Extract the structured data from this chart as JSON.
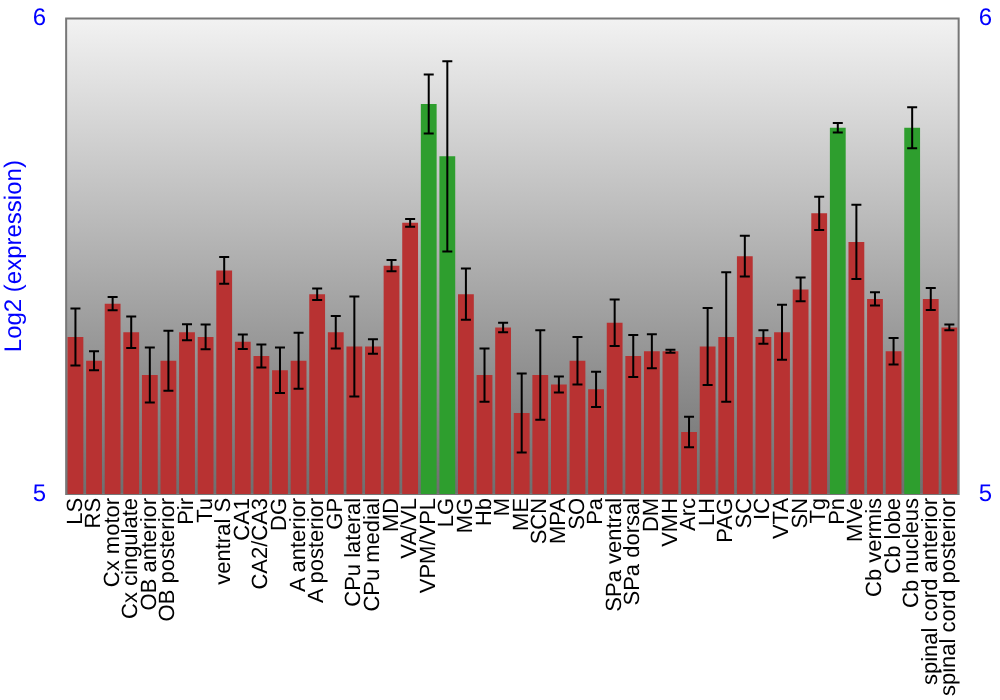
{
  "chart_data": {
    "type": "bar",
    "ylabel": "Log2 (expression)",
    "categories": [
      "LS",
      "RS",
      "Cx motor",
      "Cx cingulate",
      "OB anterior",
      "OB posterior",
      "Pir",
      "Tu",
      "ventral S",
      "CA1",
      "CA2/CA3",
      "DG",
      "A anterior",
      "A posterior",
      "GP",
      "CPu lateral",
      "CPu medial",
      "MD",
      "VA/VL",
      "VPM/VPL",
      "LG",
      "MG",
      "Hb",
      "M",
      "ME",
      "SCN",
      "MPA",
      "SO",
      "Pa",
      "SPa ventral",
      "SPa dorsal",
      "DM",
      "VMH",
      "Arc",
      "LH",
      "PAG",
      "SC",
      "IC",
      "VTA",
      "SN",
      "Tg",
      "Pn",
      "MVe",
      "Cb vermis",
      "Cb lobe",
      "Cb nucleus",
      "spinal cord anterior",
      "spinal cord posterior"
    ],
    "values": [
      5.33,
      5.28,
      5.4,
      5.34,
      5.25,
      5.28,
      5.34,
      5.33,
      5.47,
      5.32,
      5.29,
      5.26,
      5.28,
      5.42,
      5.34,
      5.31,
      5.31,
      5.48,
      5.57,
      5.82,
      5.71,
      5.42,
      5.25,
      5.35,
      5.17,
      5.25,
      5.23,
      5.28,
      5.22,
      5.36,
      5.29,
      5.3,
      5.3,
      5.13,
      5.31,
      5.33,
      5.5,
      5.33,
      5.34,
      5.43,
      5.59,
      5.77,
      5.53,
      5.41,
      5.3,
      5.77,
      5.41,
      5.35
    ],
    "errors": [
      0.06,
      0.02,
      0.014,
      0.033,
      0.058,
      0.063,
      0.017,
      0.026,
      0.028,
      0.015,
      0.024,
      0.048,
      0.059,
      0.012,
      0.034,
      0.105,
      0.015,
      0.012,
      0.008,
      0.062,
      0.2,
      0.054,
      0.056,
      0.01,
      0.083,
      0.094,
      0.017,
      0.05,
      0.037,
      0.049,
      0.044,
      0.036,
      0.003,
      0.032,
      0.081,
      0.136,
      0.043,
      0.014,
      0.058,
      0.025,
      0.035,
      0.01,
      0.078,
      0.014,
      0.028,
      0.043,
      0.023,
      0.006
    ],
    "colors": [
      "#b83232",
      "#b83232",
      "#b83232",
      "#b83232",
      "#b83232",
      "#b83232",
      "#b83232",
      "#b83232",
      "#b83232",
      "#b83232",
      "#b83232",
      "#b83232",
      "#b83232",
      "#b83232",
      "#b83232",
      "#b83232",
      "#b83232",
      "#b83232",
      "#b83232",
      "#2e9e2e",
      "#2e9e2e",
      "#b83232",
      "#b83232",
      "#b83232",
      "#b83232",
      "#b83232",
      "#b83232",
      "#b83232",
      "#b83232",
      "#b83232",
      "#b83232",
      "#b83232",
      "#b83232",
      "#b83232",
      "#b83232",
      "#b83232",
      "#b83232",
      "#b83232",
      "#b83232",
      "#b83232",
      "#b83232",
      "#2e9e2e",
      "#b83232",
      "#b83232",
      "#b83232",
      "#2e9e2e",
      "#b83232",
      "#b83232"
    ],
    "ylim": [
      5,
      6
    ],
    "yticks": [
      5,
      6
    ],
    "y2lim": [
      5,
      6
    ],
    "y2ticks": [
      5,
      6
    ],
    "grid": false,
    "legend": false
  }
}
